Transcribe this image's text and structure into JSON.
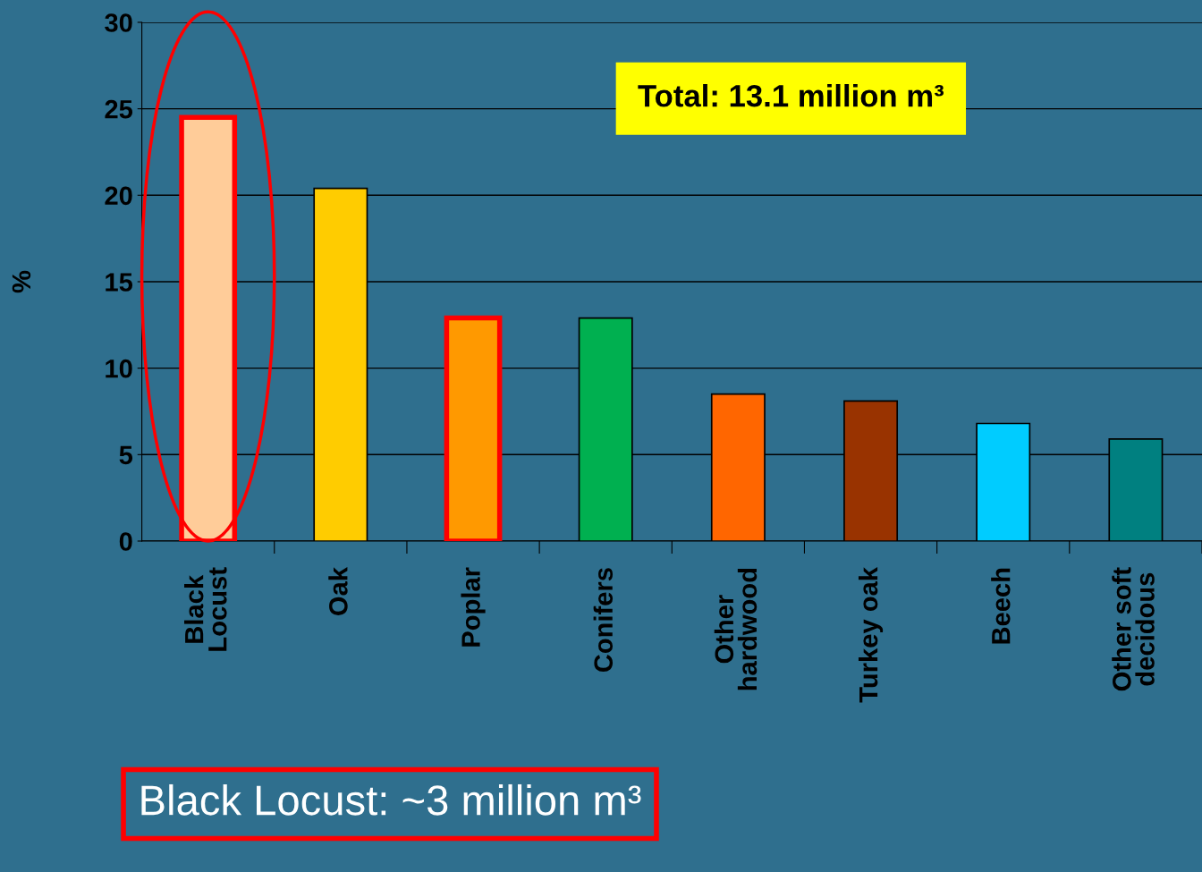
{
  "chart_data": {
    "type": "bar",
    "ylabel": "%",
    "categories": [
      "Black\nLocust",
      "Oak",
      "Poplar",
      "Conifers",
      "Other\nhardwood",
      "Turkey oak",
      "Beech",
      "Other soft\ndecidous"
    ],
    "values": [
      24.5,
      20.4,
      12.9,
      12.9,
      8.5,
      8.1,
      6.8,
      5.9
    ],
    "colors": [
      "#ffcc99",
      "#ffcc00",
      "#ff9900",
      "#00b050",
      "#ff6600",
      "#993300",
      "#00ccff",
      "#008080"
    ],
    "ylim": [
      0,
      30
    ],
    "yticks": [
      0,
      5,
      10,
      15,
      20,
      25,
      30
    ],
    "grid": "y",
    "annotations": [
      "Total: 13.1 million m³",
      "Black Locust: ~3 million m³"
    ]
  }
}
